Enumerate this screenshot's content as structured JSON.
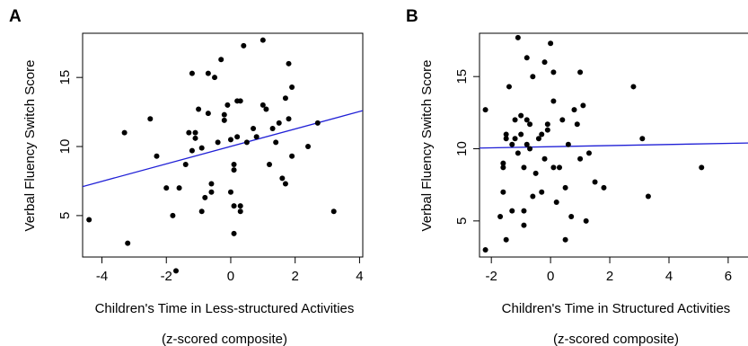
{
  "chart_data": [
    {
      "type": "scatter",
      "panel_label": "A",
      "xlabel": "Children's Time in Less-structured Activities",
      "xlabel_sub": "(z-scored composite)",
      "ylabel": "Verbal Fluency Switch Score",
      "xlim": [
        -4.6,
        4.1
      ],
      "ylim": [
        2.0,
        18.2
      ],
      "xticks": [
        -4,
        -2,
        0,
        2,
        4
      ],
      "yticks": [
        5,
        10,
        15
      ],
      "grid": false,
      "point_color": "#000000",
      "fit_line": {
        "color": "#1f1fd6",
        "x": [
          -4.6,
          4.1
        ],
        "y": [
          7.1,
          12.6
        ]
      },
      "points": [
        [
          -4.4,
          4.7
        ],
        [
          -3.2,
          3.0
        ],
        [
          -3.3,
          11.0
        ],
        [
          -2.5,
          12.0
        ],
        [
          -2.3,
          9.3
        ],
        [
          -2.0,
          7.0
        ],
        [
          -1.8,
          5.0
        ],
        [
          -1.7,
          1.0
        ],
        [
          -1.6,
          7.0
        ],
        [
          -1.4,
          8.7
        ],
        [
          -1.3,
          11.0
        ],
        [
          -1.2,
          15.3
        ],
        [
          -1.2,
          9.7
        ],
        [
          -1.1,
          11.0
        ],
        [
          -1.1,
          10.6
        ],
        [
          -1.0,
          12.7
        ],
        [
          -0.9,
          5.3
        ],
        [
          -0.9,
          9.9
        ],
        [
          -0.8,
          6.3
        ],
        [
          -0.7,
          15.3
        ],
        [
          -0.7,
          12.4
        ],
        [
          -0.6,
          7.3
        ],
        [
          -0.6,
          6.7
        ],
        [
          -0.5,
          15.0
        ],
        [
          -0.4,
          10.3
        ],
        [
          -0.3,
          16.3
        ],
        [
          -0.2,
          11.9
        ],
        [
          -0.2,
          12.3
        ],
        [
          -0.1,
          13.0
        ],
        [
          0.0,
          6.7
        ],
        [
          0.0,
          10.5
        ],
        [
          0.1,
          8.3
        ],
        [
          0.1,
          8.7
        ],
        [
          0.1,
          3.7
        ],
        [
          0.1,
          5.7
        ],
        [
          0.2,
          13.3
        ],
        [
          0.2,
          10.7
        ],
        [
          0.3,
          13.3
        ],
        [
          0.3,
          5.3
        ],
        [
          0.3,
          5.7
        ],
        [
          0.4,
          17.3
        ],
        [
          0.5,
          10.3
        ],
        [
          0.7,
          11.3
        ],
        [
          0.8,
          10.7
        ],
        [
          1.0,
          17.7
        ],
        [
          1.0,
          13.0
        ],
        [
          1.1,
          12.7
        ],
        [
          1.2,
          8.7
        ],
        [
          1.3,
          11.3
        ],
        [
          1.4,
          10.3
        ],
        [
          1.5,
          11.7
        ],
        [
          1.6,
          7.7
        ],
        [
          1.7,
          7.3
        ],
        [
          1.7,
          13.5
        ],
        [
          1.8,
          16.0
        ],
        [
          1.8,
          12.0
        ],
        [
          1.9,
          14.3
        ],
        [
          1.9,
          9.3
        ],
        [
          2.4,
          10.0
        ],
        [
          2.7,
          11.7
        ],
        [
          3.2,
          5.3
        ]
      ]
    },
    {
      "type": "scatter",
      "panel_label": "B",
      "xlabel": "Children's Time in Structured Activities",
      "xlabel_sub": "(z-scored composite)",
      "ylabel": "Verbal Fluency Switch Score",
      "xlim": [
        -2.4,
        6.7
      ],
      "ylim": [
        2.5,
        18.0
      ],
      "xticks": [
        -2,
        0,
        2,
        4,
        6
      ],
      "yticks": [
        5,
        10,
        15
      ],
      "grid": false,
      "point_color": "#000000",
      "fit_line": {
        "color": "#1f1fd6",
        "x": [
          -2.4,
          6.7
        ],
        "y": [
          10.05,
          10.4
        ]
      },
      "points": [
        [
          -2.2,
          3.0
        ],
        [
          -2.2,
          12.7
        ],
        [
          -1.7,
          5.3
        ],
        [
          -1.6,
          7.0
        ],
        [
          -1.6,
          8.7
        ],
        [
          -1.6,
          9.0
        ],
        [
          -1.5,
          10.7
        ],
        [
          -1.5,
          11.0
        ],
        [
          -1.5,
          3.7
        ],
        [
          -1.4,
          14.3
        ],
        [
          -1.3,
          5.7
        ],
        [
          -1.3,
          10.3
        ],
        [
          -1.2,
          10.7
        ],
        [
          -1.2,
          12.0
        ],
        [
          -1.1,
          9.7
        ],
        [
          -1.1,
          17.7
        ],
        [
          -1.0,
          11.0
        ],
        [
          -1.0,
          12.3
        ],
        [
          -0.9,
          5.7
        ],
        [
          -0.9,
          4.7
        ],
        [
          -0.9,
          8.7
        ],
        [
          -0.8,
          10.3
        ],
        [
          -0.8,
          16.3
        ],
        [
          -0.8,
          12.0
        ],
        [
          -0.7,
          11.7
        ],
        [
          -0.7,
          10.0
        ],
        [
          -0.6,
          6.7
        ],
        [
          -0.6,
          15.0
        ],
        [
          -0.5,
          8.3
        ],
        [
          -0.4,
          10.7
        ],
        [
          -0.3,
          11.0
        ],
        [
          -0.3,
          7.0
        ],
        [
          -0.2,
          16.0
        ],
        [
          -0.2,
          9.3
        ],
        [
          -0.1,
          11.3
        ],
        [
          -0.1,
          11.7
        ],
        [
          0.0,
          17.3
        ],
        [
          0.1,
          15.3
        ],
        [
          0.1,
          13.3
        ],
        [
          0.1,
          8.7
        ],
        [
          0.2,
          6.3
        ],
        [
          0.3,
          8.7
        ],
        [
          0.4,
          12.0
        ],
        [
          0.5,
          3.7
        ],
        [
          0.5,
          7.3
        ],
        [
          0.6,
          10.3
        ],
        [
          0.7,
          5.3
        ],
        [
          0.8,
          12.7
        ],
        [
          0.9,
          11.7
        ],
        [
          1.0,
          9.3
        ],
        [
          1.0,
          15.3
        ],
        [
          1.1,
          13.0
        ],
        [
          1.2,
          5.0
        ],
        [
          1.3,
          9.7
        ],
        [
          1.5,
          7.7
        ],
        [
          1.8,
          7.3
        ],
        [
          2.8,
          14.3
        ],
        [
          3.1,
          10.7
        ],
        [
          3.3,
          6.7
        ],
        [
          5.1,
          8.7
        ]
      ]
    }
  ]
}
